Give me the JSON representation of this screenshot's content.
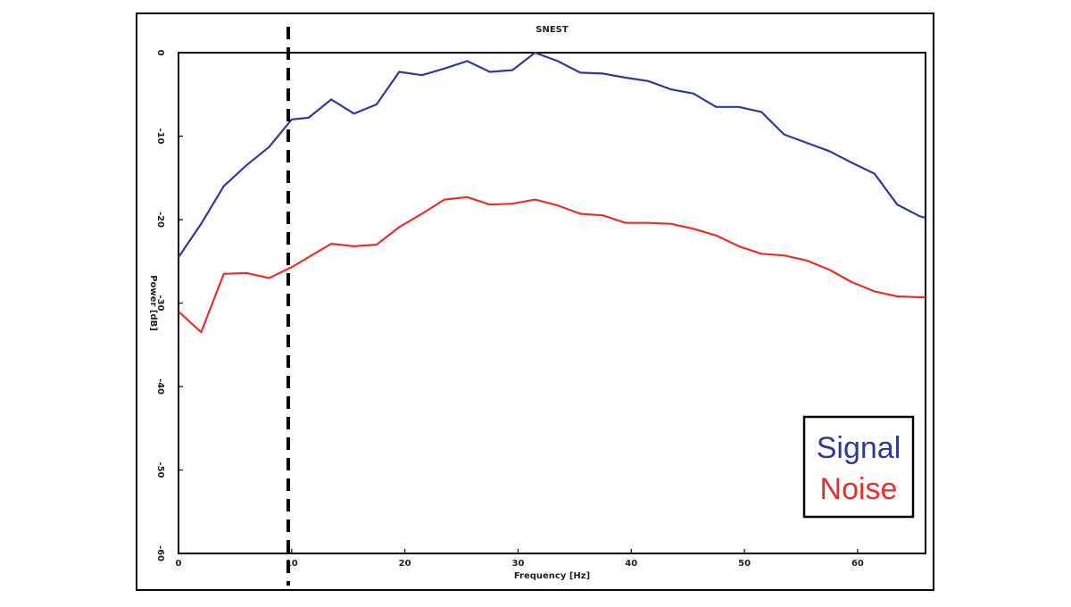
{
  "chart_data": {
    "type": "line",
    "title": "SNEST",
    "xlabel": "Frequency [Hz]",
    "ylabel": "Power [dB]",
    "xlim": [
      0,
      66
    ],
    "ylim": [
      -60,
      0
    ],
    "xticks": [
      0,
      10,
      20,
      30,
      40,
      50,
      60
    ],
    "xtick_labels": [
      "0",
      "10",
      "20",
      "30",
      "40",
      "50",
      "60"
    ],
    "yticks": [
      0,
      -10,
      -20,
      -30,
      -40,
      -50,
      -60
    ],
    "ytick_labels": [
      "0",
      "-10",
      "-20",
      "-30",
      "-40",
      "-50",
      "-60"
    ],
    "grid": false,
    "legend": {
      "position": "bottom-right",
      "boxed": true
    },
    "marker_line": {
      "x": 9.7,
      "style": "dashed",
      "color": "#000000"
    },
    "series": [
      {
        "name": "Signal",
        "color": "#2e3a99",
        "x": [
          0,
          2,
          4,
          6,
          8,
          10,
          11.5,
          13.5,
          15.5,
          17.5,
          19.5,
          21.5,
          23.5,
          25.5,
          27.5,
          29.5,
          31.5,
          33.5,
          35.5,
          37.5,
          39.5,
          41.5,
          43.5,
          45.5,
          47.5,
          49.5,
          51.5,
          53.5,
          55.5,
          57.5,
          59.5,
          61.5,
          63.5,
          65.5,
          66
        ],
        "values": [
          -24.5,
          -20.5,
          -16,
          -13.5,
          -11.3,
          -8,
          -7.8,
          -5.6,
          -7.3,
          -6.2,
          -2.3,
          -2.7,
          -1.9,
          -1,
          -2.3,
          -2.1,
          0,
          -1,
          -2.4,
          -2.5,
          -3,
          -3.4,
          -4.4,
          -4.9,
          -6.5,
          -6.5,
          -7.1,
          -9.8,
          -10.8,
          -11.8,
          -13.2,
          -14.5,
          -18.2,
          -19.6,
          -19.8
        ]
      },
      {
        "name": "Noise",
        "color": "#e8302a",
        "x": [
          0,
          2,
          4,
          6,
          8,
          10,
          11.5,
          13.5,
          15.5,
          17.5,
          19.5,
          21.5,
          23.5,
          25.5,
          27.5,
          29.5,
          31.5,
          33.5,
          35.5,
          37.5,
          39.5,
          41.5,
          43.5,
          45.5,
          47.5,
          49.5,
          51.5,
          53.5,
          55.5,
          57.5,
          59.5,
          61.5,
          63.5,
          65.5,
          66
        ],
        "values": [
          -31,
          -33.5,
          -26.5,
          -26.4,
          -27,
          -25.7,
          -24.5,
          -22.9,
          -23.2,
          -23,
          -20.9,
          -19.3,
          -17.6,
          -17.3,
          -18.2,
          -18.1,
          -17.6,
          -18.3,
          -19.3,
          -19.5,
          -20.4,
          -20.4,
          -20.5,
          -21.1,
          -21.9,
          -23.2,
          -24.1,
          -24.3,
          -24.9,
          -26,
          -27.5,
          -28.6,
          -29.2,
          -29.3,
          -29.3
        ]
      }
    ]
  }
}
